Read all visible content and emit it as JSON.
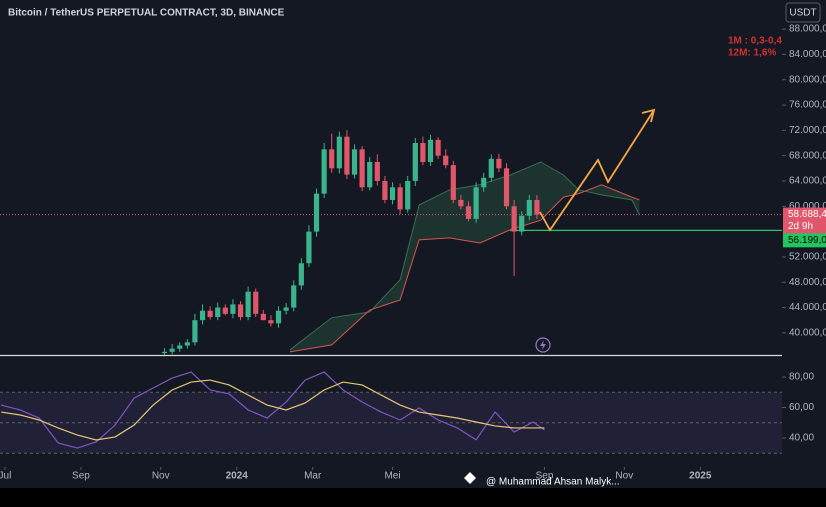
{
  "chart_data": {
    "type": "candlestick",
    "title": "Bitcoin / TetherUS PERPETUAL CONTRACT, 3D, BINANCE",
    "currency": "USDT",
    "annotations": [
      "1M : 0,3-0,4",
      "12M: 1,6%"
    ],
    "x": [
      42,
      44,
      46,
      48,
      50,
      52,
      54,
      56,
      58,
      60,
      62,
      64,
      66,
      68,
      70,
      72,
      74,
      76,
      78,
      80,
      82,
      84,
      86,
      88,
      90,
      92,
      94,
      96,
      98,
      100,
      102,
      104,
      106,
      108,
      110,
      112,
      114,
      116,
      118,
      120,
      122,
      124,
      126,
      128,
      130,
      132,
      134,
      136,
      138,
      140
    ],
    "open": [
      36800,
      37000,
      37500,
      38000,
      38500,
      42000,
      43500,
      42500,
      44000,
      43000,
      44500,
      42500,
      46500,
      43000,
      42000,
      41500,
      43500,
      44000,
      47500,
      51000,
      56000,
      62000,
      69000,
      66000,
      71000,
      65000,
      69000,
      63000,
      67000,
      64000,
      61000,
      63000,
      59500,
      64000,
      70000,
      67000,
      70500,
      68000,
      66500,
      61000,
      60000,
      58000,
      63000,
      64500,
      67500,
      66000,
      60000,
      56000,
      58500,
      61000
    ],
    "high": [
      37600,
      38200,
      38500,
      39000,
      43000,
      44500,
      44200,
      44800,
      44500,
      45300,
      45000,
      47300,
      47000,
      43600,
      42800,
      44200,
      44700,
      48300,
      51800,
      57000,
      62800,
      70000,
      71500,
      71800,
      72000,
      69800,
      69500,
      67800,
      68200,
      64800,
      63800,
      63600,
      64800,
      70800,
      71000,
      71300,
      70900,
      69000,
      67200,
      61800,
      60800,
      63800,
      65300,
      68200,
      68300,
      66800,
      61000,
      59200,
      61800,
      61800
    ],
    "low": [
      36300,
      36600,
      37000,
      37500,
      38000,
      41300,
      42100,
      42000,
      42800,
      42300,
      42000,
      42000,
      42500,
      42300,
      41000,
      40800,
      42900,
      43400,
      46800,
      50400,
      55200,
      61300,
      65300,
      65200,
      64300,
      64400,
      62400,
      62500,
      63300,
      60500,
      60300,
      58800,
      59000,
      63200,
      66500,
      66400,
      67500,
      66000,
      60500,
      59500,
      57600,
      57400,
      62300,
      63900,
      65400,
      59500,
      49000,
      55400,
      57800,
      58000
    ],
    "close": [
      37000,
      37500,
      38000,
      38500,
      42000,
      43500,
      42500,
      44000,
      43000,
      44500,
      42500,
      46500,
      43000,
      42000,
      41500,
      43500,
      44000,
      47500,
      51000,
      56000,
      62000,
      69000,
      66000,
      71000,
      65000,
      69000,
      63000,
      67000,
      64000,
      61000,
      63000,
      59500,
      64000,
      70000,
      67000,
      70500,
      68000,
      66500,
      61000,
      60000,
      58000,
      63000,
      64500,
      67500,
      66000,
      60000,
      56000,
      58500,
      61000,
      58700
    ],
    "up_color": "#3bb38c",
    "down_color": "#e0566b",
    "xlim": [
      -1.3,
      204.5
    ],
    "xticks": [
      {
        "value": 0,
        "label": "Jul"
      },
      {
        "value": 20,
        "label": "Sep"
      },
      {
        "value": 41,
        "label": "Nov"
      },
      {
        "value": 61,
        "label": "2024"
      },
      {
        "value": 81,
        "label": "Mar"
      },
      {
        "value": 102,
        "label": "Mei"
      },
      {
        "value": 142,
        "label": "Sep"
      },
      {
        "value": 163,
        "label": "Nov"
      },
      {
        "value": 183,
        "label": "2025"
      }
    ],
    "ylim": [
      36500,
      92600
    ],
    "yticks": [
      {
        "value": 40000,
        "label": "40.000,0"
      },
      {
        "value": 44000,
        "label": "44.000,0"
      },
      {
        "value": 48000,
        "label": "48.000,0"
      },
      {
        "value": 52000,
        "label": "52.000,0"
      },
      {
        "value": 60000,
        "label": "60.000,0"
      },
      {
        "value": 64000,
        "label": "64.000,0"
      },
      {
        "value": 68000,
        "label": "68.000,0"
      },
      {
        "value": 72000,
        "label": "72.000,0"
      },
      {
        "value": 76000,
        "label": "76.000,0"
      },
      {
        "value": 80000,
        "label": "80.000,0"
      },
      {
        "value": 84000,
        "label": "84.000,0"
      },
      {
        "value": 88000,
        "label": "88.000,0"
      }
    ],
    "price_line": {
      "value": 58688.4,
      "label": "58.688,4",
      "color": "#e0566b"
    },
    "countdown": "2d 9h",
    "support_line": {
      "value": 56199.0,
      "label": "56.199,0",
      "color": "#22c55e"
    },
    "cloud": {
      "x": [
        75,
        86,
        96,
        104,
        109,
        117,
        125,
        133,
        141,
        147,
        151,
        157,
        165,
        167
      ],
      "span_a": [
        37300,
        42400,
        43300,
        48400,
        60200,
        62600,
        63400,
        64950,
        67000,
        64950,
        62600,
        61800,
        61000,
        58600
      ],
      "span_b": [
        37000,
        38100,
        43600,
        45200,
        54700,
        55000,
        54200,
        56300,
        57800,
        61450,
        62000,
        63400,
        61450,
        61000
      ],
      "fill": "rgba(60,150,90,0.22)",
      "color_a": "rgba(90,170,110,0.55)",
      "color_b": "#d9534f"
    },
    "rsi": {
      "x": [
        -1,
        4,
        9,
        14,
        19,
        24,
        29,
        34,
        39,
        44,
        49,
        54,
        59,
        64,
        69,
        74,
        79,
        84,
        89,
        94,
        99,
        104,
        109,
        114,
        119,
        124,
        129,
        134,
        139,
        142
      ],
      "values": [
        61.6,
        58.4,
        53.1,
        36.7,
        33.4,
        37.4,
        48.5,
        66.2,
        72.8,
        79.3,
        83.3,
        71.5,
        68.9,
        58.4,
        53.1,
        63.6,
        78.0,
        83.3,
        71.5,
        63.6,
        57.0,
        51.8,
        59.7,
        51.8,
        46.6,
        38.8,
        57.0,
        43.9,
        50.5,
        45.2
      ],
      "ma": [
        57.0,
        55.1,
        51.8,
        46.6,
        42.0,
        38.7,
        40.7,
        48.5,
        61.6,
        71.5,
        76.7,
        78.0,
        74.8,
        68.2,
        61.6,
        58.4,
        63.0,
        71.5,
        76.7,
        74.8,
        68.2,
        61.6,
        57.0,
        55.1,
        53.1,
        50.5,
        47.9,
        46.6,
        46.6,
        46.6
      ],
      "color": "#7e57c2",
      "ma_color": "#e8c872",
      "ylim": [
        21.6,
        92.5
      ],
      "yticks": [
        {
          "value": 40,
          "label": "40,00"
        },
        {
          "value": 60,
          "label": "60,00"
        },
        {
          "value": 80,
          "label": "80,00"
        }
      ],
      "band": [
        30,
        70
      ],
      "levels": [
        70,
        50,
        30
      ]
    },
    "watermark": "@ Muhammad Ahsan Malyk..."
  }
}
